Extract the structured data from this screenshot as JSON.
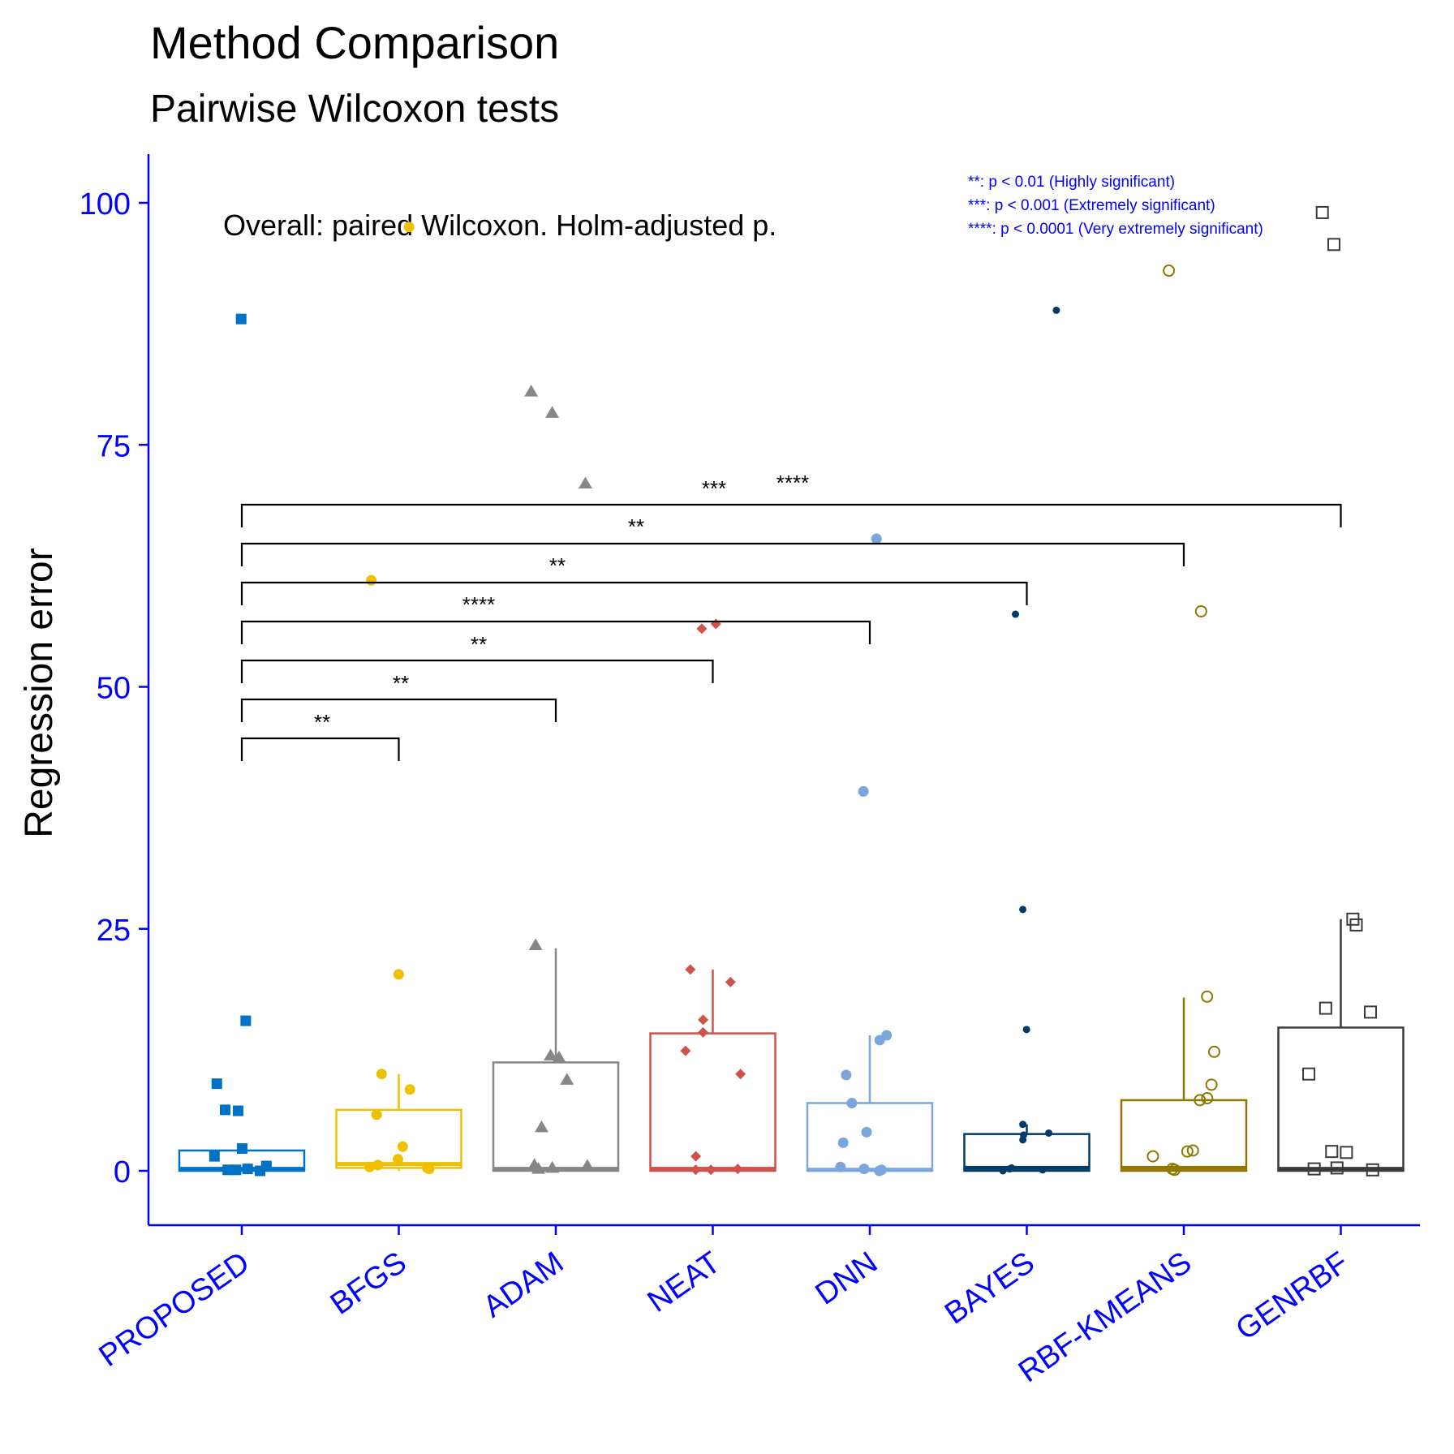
{
  "chart_data": {
    "type": "box",
    "title": "Method Comparison",
    "subtitle": "Pairwise Wilcoxon tests",
    "ylabel": "Regression error",
    "xlabel": "",
    "ylim": [
      -5,
      105
    ],
    "yticks": [
      0,
      25,
      50,
      75,
      100
    ],
    "annotation": "Overall: paired Wilcoxon. Holm-adjusted p.",
    "legend_notes": [
      "**: p < 0.01 (Highly significant)",
      "***: p < 0.001  (Extremely significant)",
      "****: p < 0.0001 (Very extremely significant)"
    ],
    "colors": {
      "axis": "#0000ff",
      "text": "#000000"
    },
    "categories": [
      "PROPOSED",
      "BFGS",
      "ADAM",
      "NEAT",
      "DNN",
      "BAYES",
      "RBF-KMEANS",
      "GENRBF"
    ],
    "series": [
      {
        "category": "PROPOSED",
        "color": "#0072c6",
        "marker": "square-filled",
        "box": {
          "q1": 0,
          "median": 0.2,
          "q3": 2.1,
          "lower": 0,
          "upper": 2.1
        },
        "points": [
          88,
          15.5,
          9,
          6.3,
          6.2,
          2.3,
          1.5,
          0.5,
          0.2,
          0.1,
          0.1,
          0.0
        ]
      },
      {
        "category": "BFGS",
        "color": "#eec000",
        "marker": "circle-filled",
        "box": {
          "q1": 0.3,
          "median": 0.7,
          "q3": 6.3,
          "lower": 0,
          "upper": 10
        },
        "points": [
          97.5,
          61,
          20.3,
          10,
          8.4,
          5.8,
          2.5,
          1.2,
          0.6,
          0.4,
          0.3,
          0.2
        ]
      },
      {
        "category": "ADAM",
        "color": "#868686",
        "marker": "triangle-filled",
        "box": {
          "q1": 0,
          "median": 0.2,
          "q3": 11.2,
          "lower": 0,
          "upper": 23
        },
        "points": [
          80.5,
          78.3,
          71,
          23.3,
          11.9,
          11.7,
          9.4,
          4.5,
          0.6,
          0.5,
          0.3,
          0.2
        ]
      },
      {
        "category": "NEAT",
        "color": "#cd534c",
        "marker": "diamond-filled",
        "box": {
          "q1": 0,
          "median": 0.2,
          "q3": 14.2,
          "lower": 0,
          "upper": 20.8
        },
        "points": [
          56.5,
          56,
          20.8,
          19.5,
          15.6,
          14.3,
          12.4,
          10,
          1.5,
          0.2,
          0.1,
          0.1
        ]
      },
      {
        "category": "DNN",
        "color": "#7aa6dc",
        "marker": "circle-filled",
        "box": {
          "q1": 0,
          "median": 0.1,
          "q3": 7,
          "lower": 0,
          "upper": 14
        },
        "points": [
          65.3,
          39.2,
          14,
          13.5,
          9.9,
          7,
          4,
          2.9,
          0.4,
          0.2,
          0.1,
          0.0
        ]
      },
      {
        "category": "BAYES",
        "color": "#003c67",
        "marker": "circle-small",
        "box": {
          "q1": 0,
          "median": 0.3,
          "q3": 3.8,
          "lower": 0,
          "upper": 4.8
        },
        "points": [
          88.9,
          57.5,
          27,
          14.6,
          4.8,
          3.9,
          3.7,
          3.2,
          0.3,
          0.2,
          0.1,
          0.0
        ]
      },
      {
        "category": "RBF-KMEANS",
        "color": "#8f7700",
        "marker": "circle-open",
        "box": {
          "q1": 0,
          "median": 0.3,
          "q3": 7.3,
          "lower": 0,
          "upper": 17.9
        },
        "points": [
          93,
          57.8,
          18,
          12.3,
          8.9,
          7.5,
          7.3,
          2.1,
          2.0,
          1.5,
          0.2,
          0.1
        ]
      },
      {
        "category": "GENRBF",
        "color": "#3b3b3b",
        "marker": "square-open",
        "box": {
          "q1": 0,
          "median": 0.2,
          "q3": 14.8,
          "lower": 0,
          "upper": 26
        },
        "points": [
          99,
          95.7,
          26,
          25.4,
          16.8,
          16.4,
          10,
          2.0,
          1.9,
          0.3,
          0.2,
          0.1
        ]
      }
    ],
    "comparisons": [
      {
        "from": "PROPOSED",
        "to": "BFGS",
        "label": "**"
      },
      {
        "from": "PROPOSED",
        "to": "ADAM",
        "label": "**"
      },
      {
        "from": "PROPOSED",
        "to": "NEAT",
        "label": "**"
      },
      {
        "from": "PROPOSED",
        "to": "DNN",
        "label": "****"
      },
      {
        "from": "PROPOSED",
        "to": "BAYES",
        "label": "**"
      },
      {
        "from": "PROPOSED",
        "to": "RBF-KMEANS",
        "label": "**"
      },
      {
        "from": "PROPOSED",
        "to": "GENRBF",
        "label": "***"
      },
      {
        "from": "PROPOSED",
        "to": "GENRBF",
        "label": "****"
      }
    ]
  }
}
